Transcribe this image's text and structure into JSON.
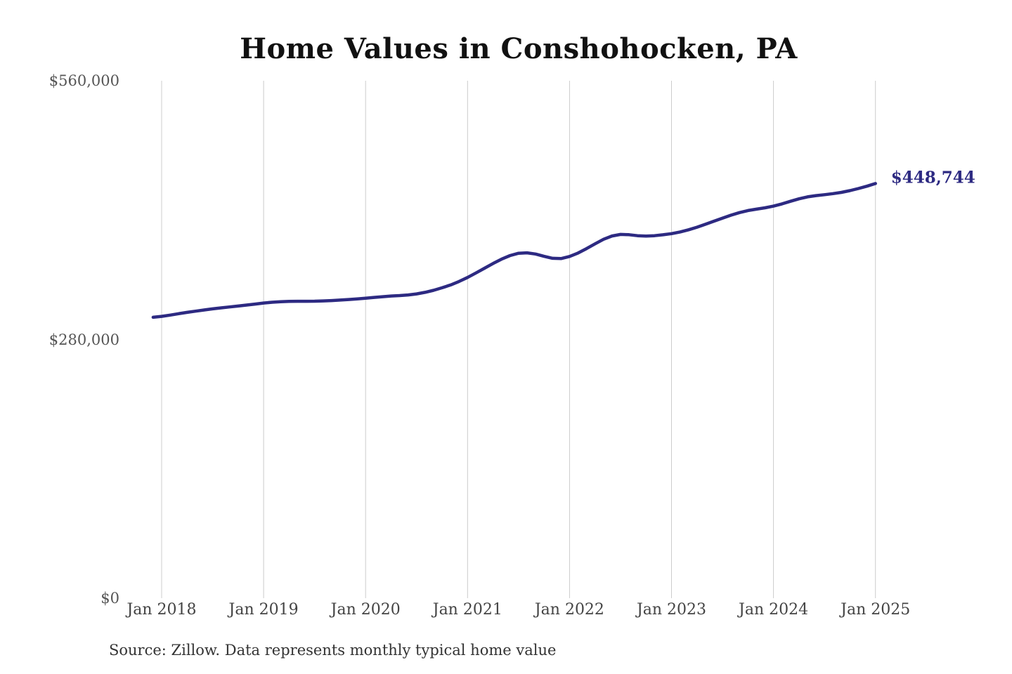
{
  "chart_data": {
    "type": "line",
    "title": "Home Values in Conshohocken, PA",
    "series_name": "Monthly typical home value (Zillow)",
    "x_tick_labels": [
      "Jan 2018",
      "Jan 2019",
      "Jan 2020",
      "Jan 2021",
      "Jan 2022",
      "Jan 2023",
      "Jan 2024",
      "Jan 2025"
    ],
    "y_ticks": [
      {
        "value": 560000,
        "label": "$560,000"
      },
      {
        "value": 280000,
        "label": "$280,000"
      },
      {
        "value": 0,
        "label": "$0"
      }
    ],
    "ylim": [
      0,
      560000
    ],
    "grid": "vertical-only",
    "legend": "none",
    "end_label": "$448,744",
    "frequency": "monthly",
    "series_month_offset": -1,
    "x_months": [
      "2017-12",
      "2018-01",
      "2018-02",
      "2018-03",
      "2018-04",
      "2018-05",
      "2018-06",
      "2018-07",
      "2018-08",
      "2018-09",
      "2018-10",
      "2018-11",
      "2018-12",
      "2019-01",
      "2019-02",
      "2019-03",
      "2019-04",
      "2019-05",
      "2019-06",
      "2019-07",
      "2019-08",
      "2019-09",
      "2019-10",
      "2019-11",
      "2019-12",
      "2020-01",
      "2020-02",
      "2020-03",
      "2020-04",
      "2020-05",
      "2020-06",
      "2020-07",
      "2020-08",
      "2020-09",
      "2020-10",
      "2020-11",
      "2020-12",
      "2021-01",
      "2021-02",
      "2021-03",
      "2021-04",
      "2021-05",
      "2021-06",
      "2021-07",
      "2021-08",
      "2021-09",
      "2021-10",
      "2021-11",
      "2021-12",
      "2022-01",
      "2022-02",
      "2022-03",
      "2022-04",
      "2022-05",
      "2022-06",
      "2022-07",
      "2022-08",
      "2022-09",
      "2022-10",
      "2022-11",
      "2022-12",
      "2023-01",
      "2023-02",
      "2023-03",
      "2023-04",
      "2023-05",
      "2023-06",
      "2023-07",
      "2023-08",
      "2023-09",
      "2023-10",
      "2023-11",
      "2023-12",
      "2024-01",
      "2024-02",
      "2024-03",
      "2024-04",
      "2024-05",
      "2024-06",
      "2024-07",
      "2024-08",
      "2024-09",
      "2024-10",
      "2024-11",
      "2024-12",
      "2025-01"
    ],
    "values": [
      304000,
      305000,
      306400,
      307900,
      309300,
      310600,
      311900,
      313100,
      314200,
      315200,
      316200,
      317200,
      318300,
      319400,
      320300,
      320900,
      321200,
      321300,
      321300,
      321400,
      321700,
      322100,
      322600,
      323200,
      323900,
      324700,
      325500,
      326300,
      327000,
      327500,
      328200,
      329300,
      331000,
      333200,
      335900,
      339000,
      342800,
      347100,
      352000,
      357100,
      362200,
      366900,
      370800,
      373300,
      373800,
      372500,
      370000,
      367800,
      367500,
      369800,
      373500,
      378300,
      383500,
      388400,
      392000,
      393700,
      393400,
      392300,
      391900,
      392300,
      393300,
      394500,
      396300,
      398700,
      401500,
      404700,
      408000,
      411300,
      414500,
      417300,
      419500,
      421000,
      422500,
      424300,
      426700,
      429500,
      432200,
      434300,
      435700,
      436700,
      437800,
      439200,
      441100,
      443400,
      445900,
      448744
    ]
  },
  "colors": {
    "line": "#2d2a82",
    "annotation": "#2d2a82",
    "grid": "#cccccc",
    "title": "#111111",
    "y_tick": "#555555",
    "x_tick": "#444444",
    "source": "#333333",
    "background": "#ffffff"
  },
  "source_note": "Source: Zillow. Data represents monthly typical home value"
}
